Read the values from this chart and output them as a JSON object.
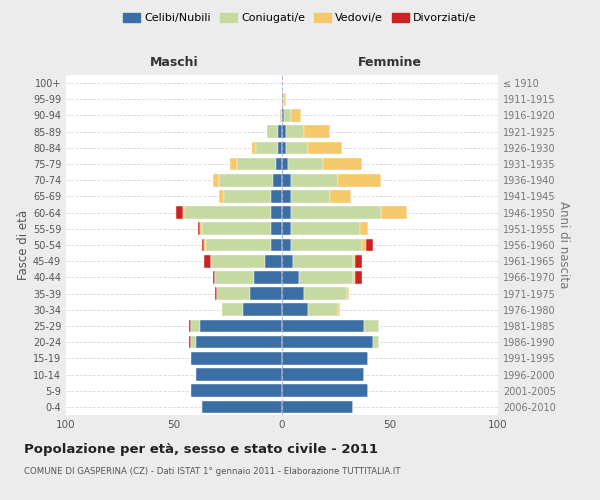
{
  "age_groups_bottom_to_top": [
    "0-4",
    "5-9",
    "10-14",
    "15-19",
    "20-24",
    "25-29",
    "30-34",
    "35-39",
    "40-44",
    "45-49",
    "50-54",
    "55-59",
    "60-64",
    "65-69",
    "70-74",
    "75-79",
    "80-84",
    "85-89",
    "90-94",
    "95-99",
    "100+"
  ],
  "birth_years_bottom_to_top": [
    "2006-2010",
    "2001-2005",
    "1996-2000",
    "1991-1995",
    "1986-1990",
    "1981-1985",
    "1976-1980",
    "1971-1975",
    "1966-1970",
    "1961-1965",
    "1956-1960",
    "1951-1955",
    "1946-1950",
    "1941-1945",
    "1936-1940",
    "1931-1935",
    "1926-1930",
    "1921-1925",
    "1916-1920",
    "1911-1915",
    "≤ 1910"
  ],
  "male_celibi": [
    37,
    42,
    40,
    42,
    40,
    38,
    18,
    15,
    13,
    8,
    5,
    5,
    5,
    5,
    4,
    3,
    2,
    2,
    0,
    0,
    0
  ],
  "male_coniugati": [
    0,
    0,
    0,
    0,
    2,
    4,
    10,
    15,
    18,
    25,
    30,
    32,
    40,
    22,
    25,
    18,
    10,
    5,
    1,
    0,
    0
  ],
  "male_vedovi": [
    0,
    0,
    0,
    0,
    0,
    0,
    0,
    0,
    0,
    0,
    1,
    1,
    1,
    2,
    3,
    3,
    2,
    0,
    0,
    0,
    0
  ],
  "male_divorziati": [
    0,
    0,
    0,
    0,
    1,
    1,
    0,
    1,
    1,
    3,
    1,
    1,
    3,
    0,
    0,
    0,
    0,
    0,
    0,
    0,
    0
  ],
  "female_nubili": [
    33,
    40,
    38,
    40,
    42,
    38,
    12,
    10,
    8,
    5,
    4,
    4,
    4,
    4,
    4,
    3,
    2,
    2,
    1,
    0,
    0
  ],
  "female_coniugate": [
    0,
    0,
    0,
    0,
    3,
    7,
    14,
    20,
    25,
    28,
    33,
    32,
    42,
    18,
    22,
    16,
    10,
    8,
    3,
    1,
    0
  ],
  "female_vedove": [
    0,
    0,
    0,
    0,
    0,
    0,
    1,
    1,
    1,
    1,
    2,
    4,
    12,
    10,
    20,
    18,
    16,
    12,
    5,
    1,
    0
  ],
  "female_divorziate": [
    0,
    0,
    0,
    0,
    0,
    0,
    0,
    0,
    3,
    3,
    3,
    0,
    0,
    0,
    0,
    0,
    0,
    0,
    0,
    0,
    0
  ],
  "colors": {
    "celibi": "#3a6ea5",
    "coniugati": "#c5d9a0",
    "vedovi": "#f5c86a",
    "divorziati": "#cc2222"
  },
  "xlim": 100,
  "title": "Popolazione per età, sesso e stato civile - 2011",
  "subtitle": "COMUNE DI GASPERINA (CZ) - Dati ISTAT 1° gennaio 2011 - Elaborazione TUTTITALIA.IT",
  "xlabel_left": "Maschi",
  "xlabel_right": "Femmine",
  "ylabel_left": "Fasce di età",
  "ylabel_right": "Anni di nascita",
  "legend_labels": [
    "Celibi/Nubili",
    "Coniugati/e",
    "Vedovi/e",
    "Divorziati/e"
  ],
  "fig_bg": "#ececec",
  "plot_bg": "#ffffff"
}
